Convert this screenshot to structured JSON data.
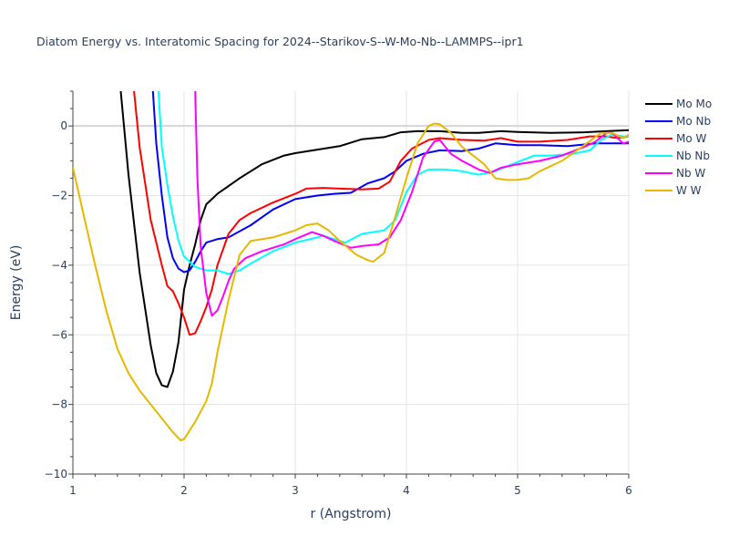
{
  "chart_data": {
    "type": "line",
    "title": "Diatom Energy vs. Interatomic Spacing for 2024--Starikov-S--W-Mo-Nb--LAMMPS--ipr1",
    "xlabel": "r (Angstrom)",
    "ylabel": "Energy (eV)",
    "xlim": [
      1,
      6
    ],
    "ylim": [
      -10,
      1
    ],
    "x_ticks": [
      "1",
      "2",
      "3",
      "4",
      "5",
      "6"
    ],
    "y_ticks": [
      "0",
      "−2",
      "−4",
      "−6",
      "−8",
      "−10"
    ],
    "grid": true,
    "legend_position": "top-right",
    "series": [
      {
        "name": "Mo Mo",
        "color": "#000000",
        "points": [
          [
            1.43,
            1.0
          ],
          [
            1.5,
            -1.4
          ],
          [
            1.6,
            -4.2
          ],
          [
            1.7,
            -6.3
          ],
          [
            1.75,
            -7.1
          ],
          [
            1.8,
            -7.45
          ],
          [
            1.85,
            -7.5
          ],
          [
            1.9,
            -7.05
          ],
          [
            1.95,
            -6.2
          ],
          [
            2.0,
            -4.7
          ],
          [
            2.05,
            -4.0
          ],
          [
            2.1,
            -3.4
          ],
          [
            2.15,
            -2.7
          ],
          [
            2.2,
            -2.25
          ],
          [
            2.3,
            -1.95
          ],
          [
            2.5,
            -1.5
          ],
          [
            2.7,
            -1.1
          ],
          [
            2.9,
            -0.85
          ],
          [
            3.0,
            -0.78
          ],
          [
            3.2,
            -0.68
          ],
          [
            3.4,
            -0.58
          ],
          [
            3.6,
            -0.38
          ],
          [
            3.8,
            -0.32
          ],
          [
            3.95,
            -0.18
          ],
          [
            4.1,
            -0.15
          ],
          [
            4.3,
            -0.15
          ],
          [
            4.5,
            -0.2
          ],
          [
            4.65,
            -0.2
          ],
          [
            4.85,
            -0.15
          ],
          [
            5.0,
            -0.17
          ],
          [
            5.3,
            -0.2
          ],
          [
            5.6,
            -0.18
          ],
          [
            5.8,
            -0.15
          ],
          [
            6.0,
            -0.12
          ]
        ]
      },
      {
        "name": "Mo Nb",
        "color": "#0000ff",
        "points": [
          [
            1.72,
            1.0
          ],
          [
            1.75,
            -0.5
          ],
          [
            1.8,
            -2.0
          ],
          [
            1.85,
            -3.2
          ],
          [
            1.9,
            -3.8
          ],
          [
            1.95,
            -4.1
          ],
          [
            2.0,
            -4.2
          ],
          [
            2.05,
            -4.15
          ],
          [
            2.1,
            -3.9
          ],
          [
            2.15,
            -3.6
          ],
          [
            2.2,
            -3.35
          ],
          [
            2.3,
            -3.25
          ],
          [
            2.4,
            -3.2
          ],
          [
            2.6,
            -2.85
          ],
          [
            2.8,
            -2.4
          ],
          [
            3.0,
            -2.1
          ],
          [
            3.2,
            -2.0
          ],
          [
            3.35,
            -1.95
          ],
          [
            3.5,
            -1.92
          ],
          [
            3.65,
            -1.65
          ],
          [
            3.8,
            -1.5
          ],
          [
            3.9,
            -1.3
          ],
          [
            4.0,
            -1.0
          ],
          [
            4.15,
            -0.8
          ],
          [
            4.3,
            -0.7
          ],
          [
            4.5,
            -0.72
          ],
          [
            4.65,
            -0.65
          ],
          [
            4.8,
            -0.5
          ],
          [
            5.0,
            -0.55
          ],
          [
            5.2,
            -0.55
          ],
          [
            5.45,
            -0.58
          ],
          [
            5.7,
            -0.5
          ],
          [
            5.9,
            -0.5
          ],
          [
            6.0,
            -0.5
          ]
        ]
      },
      {
        "name": "Mo W",
        "color": "#ff0000",
        "points": [
          [
            1.55,
            1.0
          ],
          [
            1.6,
            -0.6
          ],
          [
            1.7,
            -2.7
          ],
          [
            1.8,
            -4.0
          ],
          [
            1.85,
            -4.6
          ],
          [
            1.9,
            -4.75
          ],
          [
            1.95,
            -5.1
          ],
          [
            2.0,
            -5.5
          ],
          [
            2.05,
            -6.0
          ],
          [
            2.1,
            -5.95
          ],
          [
            2.15,
            -5.6
          ],
          [
            2.2,
            -5.2
          ],
          [
            2.25,
            -4.7
          ],
          [
            2.3,
            -4.0
          ],
          [
            2.4,
            -3.1
          ],
          [
            2.5,
            -2.7
          ],
          [
            2.6,
            -2.5
          ],
          [
            2.8,
            -2.2
          ],
          [
            3.0,
            -1.95
          ],
          [
            3.1,
            -1.8
          ],
          [
            3.25,
            -1.78
          ],
          [
            3.4,
            -1.8
          ],
          [
            3.6,
            -1.82
          ],
          [
            3.75,
            -1.8
          ],
          [
            3.85,
            -1.6
          ],
          [
            3.95,
            -1.0
          ],
          [
            4.05,
            -0.65
          ],
          [
            4.2,
            -0.4
          ],
          [
            4.3,
            -0.35
          ],
          [
            4.5,
            -0.4
          ],
          [
            4.7,
            -0.42
          ],
          [
            4.85,
            -0.35
          ],
          [
            5.0,
            -0.45
          ],
          [
            5.2,
            -0.45
          ],
          [
            5.45,
            -0.4
          ],
          [
            5.65,
            -0.3
          ],
          [
            5.8,
            -0.3
          ],
          [
            5.9,
            -0.35
          ],
          [
            6.0,
            -0.3
          ]
        ]
      },
      {
        "name": "Nb Nb",
        "color": "#00ffff",
        "points": [
          [
            1.77,
            1.0
          ],
          [
            1.8,
            -0.6
          ],
          [
            1.85,
            -1.7
          ],
          [
            1.9,
            -2.6
          ],
          [
            1.95,
            -3.3
          ],
          [
            2.0,
            -3.75
          ],
          [
            2.1,
            -4.05
          ],
          [
            2.2,
            -4.15
          ],
          [
            2.3,
            -4.15
          ],
          [
            2.4,
            -4.25
          ],
          [
            2.5,
            -4.15
          ],
          [
            2.6,
            -3.95
          ],
          [
            2.8,
            -3.6
          ],
          [
            3.0,
            -3.35
          ],
          [
            3.2,
            -3.2
          ],
          [
            3.25,
            -3.15
          ],
          [
            3.35,
            -3.25
          ],
          [
            3.45,
            -3.35
          ],
          [
            3.6,
            -3.1
          ],
          [
            3.8,
            -3.0
          ],
          [
            3.9,
            -2.7
          ],
          [
            4.0,
            -1.9
          ],
          [
            4.1,
            -1.4
          ],
          [
            4.2,
            -1.25
          ],
          [
            4.35,
            -1.25
          ],
          [
            4.5,
            -1.3
          ],
          [
            4.65,
            -1.4
          ],
          [
            4.8,
            -1.3
          ],
          [
            4.95,
            -1.1
          ],
          [
            5.15,
            -0.85
          ],
          [
            5.3,
            -0.85
          ],
          [
            5.5,
            -0.8
          ],
          [
            5.65,
            -0.7
          ],
          [
            5.75,
            -0.4
          ],
          [
            5.85,
            -0.25
          ],
          [
            5.95,
            -0.3
          ],
          [
            6.0,
            -0.3
          ]
        ]
      },
      {
        "name": "Nb W",
        "color": "#ff00ff",
        "points": [
          [
            2.1,
            1.0
          ],
          [
            2.12,
            -1.5
          ],
          [
            2.15,
            -3.5
          ],
          [
            2.2,
            -4.8
          ],
          [
            2.25,
            -5.45
          ],
          [
            2.3,
            -5.3
          ],
          [
            2.35,
            -4.9
          ],
          [
            2.4,
            -4.45
          ],
          [
            2.45,
            -4.1
          ],
          [
            2.55,
            -3.8
          ],
          [
            2.7,
            -3.6
          ],
          [
            2.9,
            -3.4
          ],
          [
            3.0,
            -3.25
          ],
          [
            3.15,
            -3.05
          ],
          [
            3.25,
            -3.15
          ],
          [
            3.35,
            -3.3
          ],
          [
            3.5,
            -3.5
          ],
          [
            3.6,
            -3.45
          ],
          [
            3.75,
            -3.4
          ],
          [
            3.85,
            -3.2
          ],
          [
            3.95,
            -2.7
          ],
          [
            4.05,
            -1.9
          ],
          [
            4.15,
            -0.9
          ],
          [
            4.25,
            -0.45
          ],
          [
            4.3,
            -0.4
          ],
          [
            4.4,
            -0.8
          ],
          [
            4.5,
            -1.0
          ],
          [
            4.65,
            -1.25
          ],
          [
            4.75,
            -1.35
          ],
          [
            4.85,
            -1.2
          ],
          [
            5.0,
            -1.1
          ],
          [
            5.2,
            -1.0
          ],
          [
            5.4,
            -0.85
          ],
          [
            5.6,
            -0.6
          ],
          [
            5.7,
            -0.45
          ],
          [
            5.8,
            -0.2
          ],
          [
            5.85,
            -0.2
          ],
          [
            5.95,
            -0.5
          ],
          [
            6.0,
            -0.45
          ]
        ]
      },
      {
        "name": "W W",
        "color": "#e6b800",
        "points": [
          [
            1.0,
            -1.2
          ],
          [
            1.1,
            -2.6
          ],
          [
            1.2,
            -4.0
          ],
          [
            1.3,
            -5.3
          ],
          [
            1.4,
            -6.4
          ],
          [
            1.5,
            -7.1
          ],
          [
            1.6,
            -7.6
          ],
          [
            1.7,
            -8.0
          ],
          [
            1.8,
            -8.4
          ],
          [
            1.9,
            -8.8
          ],
          [
            1.97,
            -9.03
          ],
          [
            2.0,
            -9.0
          ],
          [
            2.1,
            -8.5
          ],
          [
            2.2,
            -7.9
          ],
          [
            2.25,
            -7.4
          ],
          [
            2.3,
            -6.5
          ],
          [
            2.4,
            -5.0
          ],
          [
            2.5,
            -3.7
          ],
          [
            2.6,
            -3.3
          ],
          [
            2.8,
            -3.2
          ],
          [
            3.0,
            -3.0
          ],
          [
            3.1,
            -2.85
          ],
          [
            3.2,
            -2.8
          ],
          [
            3.3,
            -3.0
          ],
          [
            3.4,
            -3.3
          ],
          [
            3.55,
            -3.7
          ],
          [
            3.65,
            -3.85
          ],
          [
            3.7,
            -3.9
          ],
          [
            3.8,
            -3.65
          ],
          [
            3.9,
            -2.6
          ],
          [
            4.0,
            -1.5
          ],
          [
            4.1,
            -0.5
          ],
          [
            4.2,
            0.0
          ],
          [
            4.25,
            0.07
          ],
          [
            4.3,
            0.05
          ],
          [
            4.4,
            -0.2
          ],
          [
            4.5,
            -0.6
          ],
          [
            4.6,
            -0.85
          ],
          [
            4.7,
            -1.1
          ],
          [
            4.8,
            -1.5
          ],
          [
            4.9,
            -1.55
          ],
          [
            5.0,
            -1.55
          ],
          [
            5.1,
            -1.5
          ],
          [
            5.2,
            -1.3
          ],
          [
            5.4,
            -1.0
          ],
          [
            5.6,
            -0.55
          ],
          [
            5.75,
            -0.2
          ],
          [
            5.85,
            -0.2
          ],
          [
            5.95,
            -0.35
          ],
          [
            6.0,
            -0.25
          ]
        ]
      }
    ]
  }
}
